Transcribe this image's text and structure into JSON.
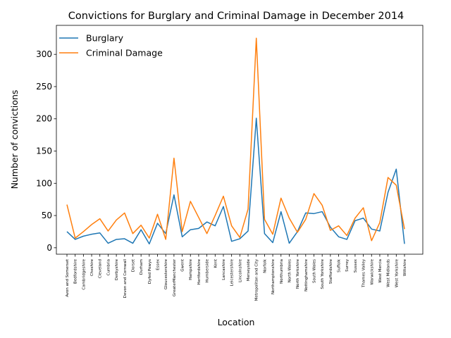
{
  "chart_data": {
    "type": "line",
    "title": "Convictions for Burglary and Criminal Damage in December 2014",
    "xlabel": "Location",
    "ylabel": "Number of convictions",
    "ylim": [
      -10,
      345
    ],
    "yticks": [
      0,
      50,
      100,
      150,
      200,
      250,
      300
    ],
    "grid": false,
    "legend_position": "top-left",
    "categories": [
      "Avon and Somerset",
      "Bedfordshire",
      "Cambridgeshire",
      "Cheshire",
      "Cleveland",
      "Cumbria",
      "Derbyshire",
      "Devon and Cornwall",
      "Dorset",
      "Durham",
      "Dyfed Powys",
      "Essex",
      "Gloucestershire",
      "GreaterManchester",
      "Gwent",
      "Hampshire",
      "Hertfordshire",
      "Humberside",
      "Kent",
      "Lancashire",
      "Leicestershire",
      "Lincolnshire",
      "Merseyside",
      "Metropolitan and City",
      "Norfolk",
      "Northamptonshire",
      "Northumbria",
      "North Wales",
      "North Yorkshire",
      "Nottinghamshire",
      "South Wales",
      "South Yorkshire",
      "Staffordshire",
      "Suffolk",
      "Surrey",
      "Sussex",
      "Thames Valley",
      "Warwickshire",
      "West Mercia",
      "West Midlands",
      "West Yorkshire",
      "Wiltshire"
    ],
    "series": [
      {
        "name": "Burglary",
        "color": "#1f77b4",
        "values": [
          25,
          13,
          18,
          21,
          23,
          7,
          13,
          14,
          7,
          28,
          6,
          38,
          22,
          82,
          17,
          28,
          30,
          40,
          34,
          64,
          10,
          14,
          26,
          201,
          22,
          8,
          56,
          7,
          25,
          54,
          53,
          56,
          32,
          17,
          13,
          42,
          46,
          29,
          26,
          86,
          122,
          6
        ]
      },
      {
        "name": "Criminal Damage",
        "color": "#ff7f0e",
        "values": [
          67,
          15,
          25,
          36,
          45,
          26,
          43,
          54,
          22,
          35,
          15,
          52,
          13,
          139,
          25,
          72,
          47,
          22,
          50,
          80,
          34,
          16,
          60,
          325,
          44,
          21,
          77,
          46,
          24,
          44,
          84,
          66,
          27,
          34,
          19,
          46,
          62,
          11,
          39,
          109,
          97,
          29
        ]
      }
    ]
  }
}
